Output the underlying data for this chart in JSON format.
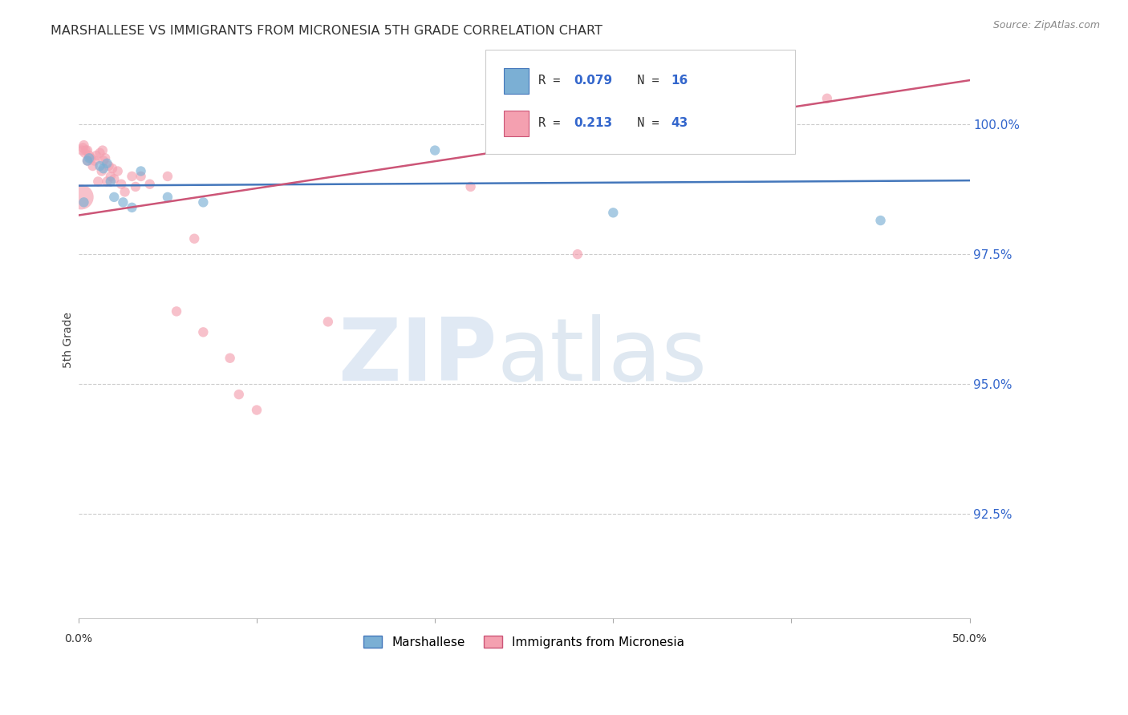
{
  "title": "MARSHALLESE VS IMMIGRANTS FROM MICRONESIA 5TH GRADE CORRELATION CHART",
  "source": "Source: ZipAtlas.com",
  "ylabel": "5th Grade",
  "xlim": [
    0.0,
    50.0
  ],
  "ylim": [
    90.5,
    101.2
  ],
  "blue_R": 0.079,
  "blue_N": 16,
  "pink_R": 0.213,
  "pink_N": 43,
  "blue_color": "#7BAFD4",
  "pink_color": "#F4A0B0",
  "blue_line_color": "#4477BB",
  "pink_line_color": "#CC5577",
  "legend_label_blue": "Marshallese",
  "legend_label_pink": "Immigrants from Micronesia",
  "ytick_vals": [
    92.5,
    95.0,
    97.5,
    100.0
  ],
  "ytick_labels": [
    "92.5%",
    "95.0%",
    "97.5%",
    "100.0%"
  ],
  "blue_x": [
    0.3,
    0.5,
    0.6,
    1.2,
    1.4,
    1.6,
    1.8,
    2.0,
    2.5,
    3.0,
    3.5,
    5.0,
    7.0,
    20.0,
    30.0,
    45.0
  ],
  "blue_y": [
    98.5,
    99.3,
    99.35,
    99.2,
    99.15,
    99.25,
    98.9,
    98.6,
    98.5,
    98.4,
    99.1,
    98.6,
    98.5,
    99.5,
    98.3,
    98.15
  ],
  "blue_sizes": [
    80,
    80,
    80,
    80,
    80,
    80,
    80,
    80,
    80,
    80,
    80,
    80,
    80,
    80,
    80,
    80
  ],
  "pink_x": [
    0.15,
    0.2,
    0.25,
    0.3,
    0.35,
    0.4,
    0.5,
    0.5,
    0.6,
    0.7,
    0.8,
    0.9,
    1.0,
    1.1,
    1.2,
    1.3,
    1.35,
    1.4,
    1.5,
    1.6,
    1.7,
    1.8,
    1.9,
    2.0,
    2.2,
    2.4,
    2.6,
    3.0,
    3.2,
    3.5,
    4.0,
    5.0,
    5.5,
    6.5,
    7.0,
    8.5,
    9.0,
    10.0,
    14.0,
    22.0,
    28.0,
    35.0,
    42.0
  ],
  "pink_y": [
    98.6,
    99.5,
    99.55,
    99.6,
    99.45,
    99.5,
    99.5,
    99.3,
    99.4,
    99.35,
    99.2,
    99.3,
    99.4,
    98.9,
    99.45,
    99.1,
    99.5,
    99.3,
    99.35,
    98.9,
    99.2,
    99.0,
    99.15,
    98.95,
    99.1,
    98.85,
    98.7,
    99.0,
    98.8,
    99.0,
    98.85,
    99.0,
    96.4,
    97.8,
    96.0,
    95.5,
    94.8,
    94.5,
    96.2,
    98.8,
    97.5,
    100.3,
    100.5
  ],
  "pink_sizes": [
    500,
    80,
    80,
    80,
    80,
    80,
    80,
    80,
    80,
    80,
    80,
    80,
    80,
    80,
    80,
    80,
    80,
    80,
    80,
    80,
    80,
    80,
    80,
    80,
    80,
    80,
    80,
    80,
    80,
    80,
    80,
    80,
    80,
    80,
    80,
    80,
    80,
    80,
    80,
    80,
    80,
    80,
    80
  ]
}
